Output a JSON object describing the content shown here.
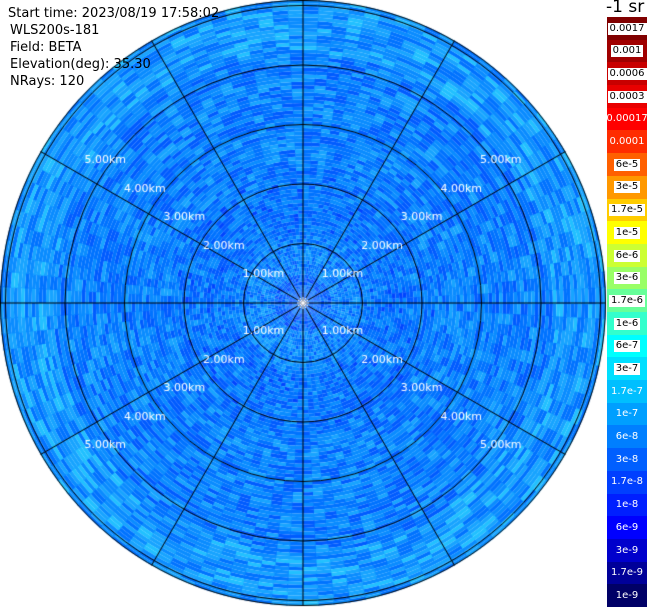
{
  "header": {
    "start_time": "Start time: 2023/08/19 17:58:02",
    "instrument": "WLS200s-181",
    "field": "Field: BETA",
    "elevation": "Elevation(deg): 35.30",
    "nrays": "NRays: 120"
  },
  "colorbar": {
    "unit": "-1 sr",
    "levels": [
      {
        "label": "0.0017",
        "color": "#800000"
      },
      {
        "label": "0.001",
        "color": "#a00000"
      },
      {
        "label": "0.0006",
        "color": "#c80000"
      },
      {
        "label": "0.0003",
        "color": "#e80000"
      },
      {
        "label": "0.00017",
        "color": "#ff0000"
      },
      {
        "label": "0.0001",
        "color": "#ff2c00"
      },
      {
        "label": "6e-5",
        "color": "#ff6000"
      },
      {
        "label": "3e-5",
        "color": "#ff9800"
      },
      {
        "label": "1.7e-5",
        "color": "#ffcc00"
      },
      {
        "label": "1e-5",
        "color": "#ffff00"
      },
      {
        "label": "6e-6",
        "color": "#ccff33"
      },
      {
        "label": "3e-6",
        "color": "#99ff66"
      },
      {
        "label": "1.7e-6",
        "color": "#66ff99"
      },
      {
        "label": "1e-6",
        "color": "#33ffcc"
      },
      {
        "label": "6e-7",
        "color": "#00ffff"
      },
      {
        "label": "3e-7",
        "color": "#00dfff"
      },
      {
        "label": "1.7e-7",
        "color": "#00bfff"
      },
      {
        "label": "1e-7",
        "color": "#009fff"
      },
      {
        "label": "6e-8",
        "color": "#007fff"
      },
      {
        "label": "3e-8",
        "color": "#005fff"
      },
      {
        "label": "1.7e-8",
        "color": "#003fff"
      },
      {
        "label": "1e-8",
        "color": "#001fff"
      },
      {
        "label": "6e-9",
        "color": "#0000ff"
      },
      {
        "label": "3e-9",
        "color": "#0000cc"
      },
      {
        "label": "1.7e-9",
        "color": "#000099"
      },
      {
        "label": "1e-9",
        "color": "#000066"
      }
    ]
  },
  "chart_data": {
    "type": "heatmap",
    "projection": "polar-ppi",
    "field": "BETA",
    "n_rays": 120,
    "range_rings_km": [
      1.0,
      2.0,
      3.0,
      4.0,
      5.0
    ],
    "range_ring_labels": [
      "1.00km",
      "2.00km",
      "3.00km",
      "4.00km",
      "5.00km"
    ],
    "azimuth_spokes_deg": [
      0,
      30,
      60,
      90,
      120,
      150,
      180,
      210,
      240,
      270,
      300,
      330
    ],
    "grid": true,
    "max_range_km": 7.0,
    "value_bands": [
      {
        "range_km": [
          0.0,
          0.45
        ],
        "level": "1.7e-8"
      },
      {
        "range_km": [
          0.45,
          1.1
        ],
        "level": "3e-8"
      },
      {
        "range_km": [
          1.1,
          2.2
        ],
        "level": "3e-8"
      },
      {
        "range_km": [
          2.2,
          4.2
        ],
        "level": "6e-8"
      },
      {
        "range_km": [
          4.2,
          6.4
        ],
        "level": "1e-7"
      }
    ]
  }
}
